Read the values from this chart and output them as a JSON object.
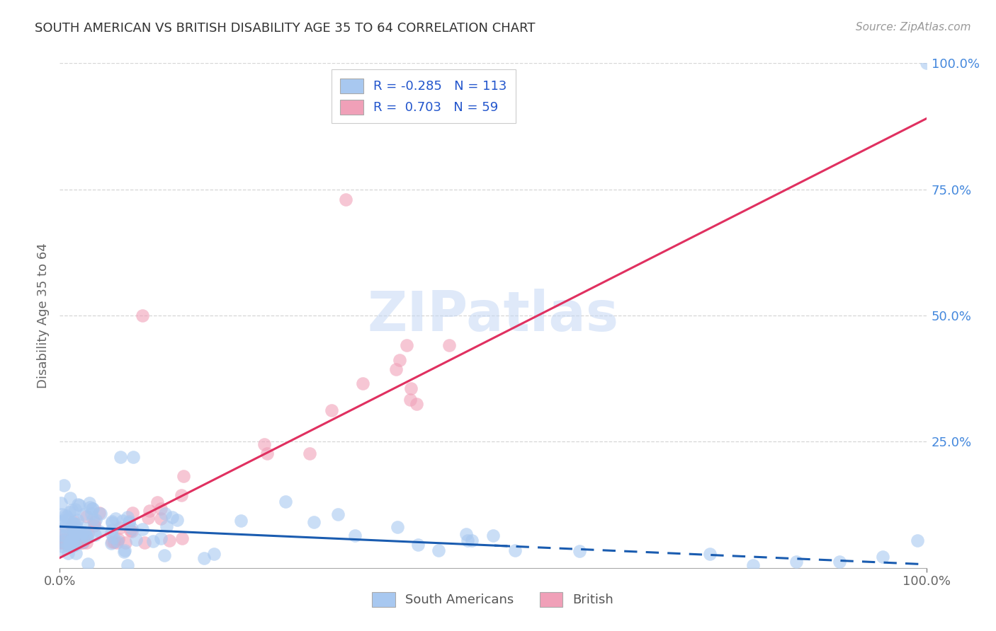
{
  "title": "SOUTH AMERICAN VS BRITISH DISABILITY AGE 35 TO 64 CORRELATION CHART",
  "source": "Source: ZipAtlas.com",
  "ylabel": "Disability Age 35 to 64",
  "watermark": "ZIPatlas",
  "blue_R": -0.285,
  "blue_N": 113,
  "pink_R": 0.703,
  "pink_N": 59,
  "blue_color": "#a8c8f0",
  "pink_color": "#f0a0b8",
  "blue_line_color": "#1a5cb0",
  "pink_line_color": "#e03060",
  "bg_color": "#ffffff",
  "grid_color": "#cccccc",
  "title_color": "#333333",
  "right_axis_color": "#4488dd",
  "figsize": [
    14.06,
    8.92
  ],
  "dpi": 100,
  "blue_intercept": 0.082,
  "blue_slope": -0.075,
  "pink_intercept": 0.02,
  "pink_slope": 0.87
}
